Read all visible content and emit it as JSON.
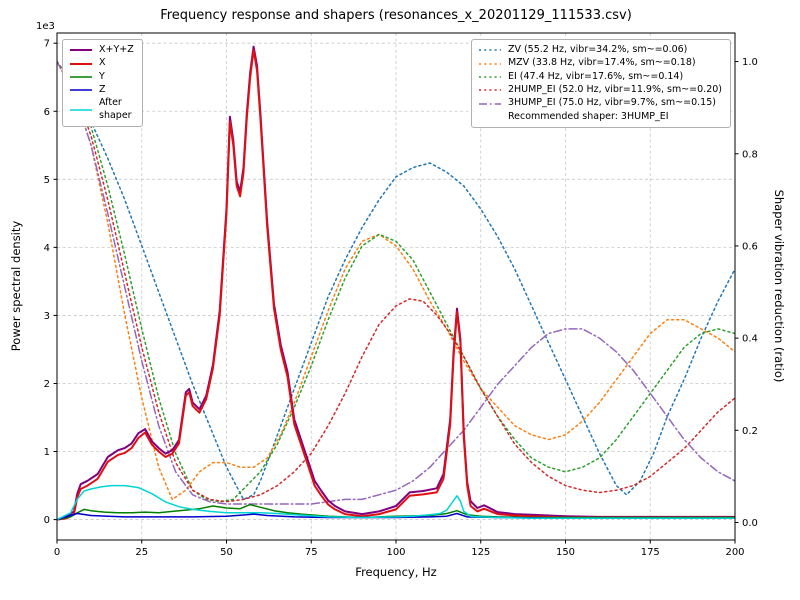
{
  "title": "Frequency response and shapers (resonances_x_20201129_111533.csv)",
  "axes": {
    "x": {
      "label": "Frequency, Hz",
      "min": 0,
      "max": 200,
      "ticks": [
        0,
        25,
        50,
        75,
        100,
        125,
        150,
        175,
        200
      ]
    },
    "y_left": {
      "label": "Power spectral density",
      "offset_text": "1e3",
      "min": -0.3,
      "max": 7.15,
      "ticks": [
        0,
        1,
        2,
        3,
        4,
        5,
        6,
        7
      ]
    },
    "y_right": {
      "label": "Shaper vibration reduction (ratio)",
      "min": -0.038,
      "max": 1.062,
      "ticks": [
        "0.0",
        "0.2",
        "0.4",
        "0.6",
        "0.8",
        "1.0"
      ]
    }
  },
  "legend_psd": {
    "items": [
      {
        "label": "X+Y+Z",
        "color": "#800080",
        "style": "solid",
        "width": 2
      },
      {
        "label": "X",
        "color": "#e01010",
        "style": "solid",
        "width": 2
      },
      {
        "label": "Y",
        "color": "#008000",
        "style": "solid",
        "width": 1.5
      },
      {
        "label": "Z",
        "color": "#0000cc",
        "style": "solid",
        "width": 1.5
      },
      {
        "label": "After\nshaper",
        "color": "#00d5d5",
        "style": "solid",
        "width": 1.5
      }
    ]
  },
  "legend_shapers": {
    "items": [
      {
        "label": "ZV (55.2 Hz, vibr=34.2%, sm~=0.06)",
        "color": "#1f77b4",
        "style": "dotted",
        "width": 1.5
      },
      {
        "label": "MZV (33.8 Hz, vibr=17.4%, sm~=0.18)",
        "color": "#ff7f0e",
        "style": "dotted",
        "width": 1.5
      },
      {
        "label": "EI (47.4 Hz, vibr=17.6%, sm~=0.14)",
        "color": "#2ca02c",
        "style": "dotted",
        "width": 1.5
      },
      {
        "label": "2HUMP_EI (52.0 Hz, vibr=11.9%, sm~=0.20)",
        "color": "#d62728",
        "style": "dotted",
        "width": 1.5
      },
      {
        "label": "3HUMP_EI (75.0 Hz, vibr=9.7%, sm~=0.15)",
        "color": "#9467bd",
        "style": "dashdot",
        "width": 1.5
      }
    ],
    "note": "Recommended shaper: 3HUMP_EI"
  },
  "chart_data": {
    "type": "line",
    "title": "Frequency response and shapers (resonances_x_20201129_111533.csv)",
    "xlabel": "Frequency, Hz",
    "ylabel_left": "Power spectral density (1e3)",
    "ylabel_right": "Shaper vibration reduction (ratio)",
    "xlim": [
      0,
      200
    ],
    "ylim_left": [
      0,
      7
    ],
    "ylim_right": [
      0,
      1
    ],
    "grid": true,
    "series": [
      {
        "name": "X+Y+Z",
        "axis": "left",
        "color": "#800080",
        "style": "solid",
        "width": 2,
        "x": [
          0,
          3,
          5,
          6,
          7,
          9,
          12,
          15,
          18,
          20,
          22,
          24,
          26,
          28,
          30,
          32,
          34,
          36,
          38,
          39,
          40,
          42,
          44,
          46,
          48,
          50,
          51,
          52,
          53,
          54,
          55,
          56,
          57,
          58,
          59,
          60,
          62,
          64,
          66,
          68,
          70,
          72,
          74,
          76,
          78,
          80,
          82,
          85,
          90,
          95,
          100,
          104,
          108,
          112,
          114,
          116,
          117,
          118,
          119,
          120,
          121,
          122,
          124,
          126,
          128,
          130,
          135,
          140,
          150,
          160,
          180,
          200
        ],
        "y": [
          0,
          0.05,
          0.12,
          0.38,
          0.52,
          0.57,
          0.67,
          0.92,
          1.02,
          1.05,
          1.12,
          1.27,
          1.33,
          1.15,
          1.05,
          0.97,
          1.02,
          1.17,
          1.87,
          1.92,
          1.72,
          1.62,
          1.82,
          2.27,
          3.07,
          4.57,
          5.92,
          5.57,
          4.97,
          4.82,
          5.17,
          5.97,
          6.57,
          6.95,
          6.67,
          5.97,
          4.37,
          3.17,
          2.57,
          2.17,
          1.47,
          1.17,
          0.87,
          0.57,
          0.42,
          0.28,
          0.2,
          0.12,
          0.08,
          0.12,
          0.2,
          0.4,
          0.42,
          0.46,
          0.67,
          1.47,
          2.47,
          3.1,
          2.65,
          1.27,
          0.55,
          0.27,
          0.17,
          0.21,
          0.16,
          0.11,
          0.08,
          0.07,
          0.05,
          0.04,
          0.04,
          0.04
        ]
      },
      {
        "name": "X",
        "axis": "left",
        "color": "#e01010",
        "style": "solid",
        "width": 2,
        "x": [
          0,
          3,
          5,
          6,
          7,
          9,
          12,
          15,
          18,
          20,
          22,
          24,
          26,
          28,
          30,
          32,
          34,
          36,
          38,
          39,
          40,
          42,
          44,
          46,
          48,
          50,
          51,
          52,
          53,
          54,
          55,
          56,
          57,
          58,
          59,
          60,
          62,
          64,
          66,
          68,
          70,
          72,
          74,
          76,
          78,
          80,
          82,
          85,
          90,
          95,
          100,
          104,
          108,
          112,
          114,
          116,
          117,
          118,
          119,
          120,
          121,
          122,
          124,
          126,
          128,
          130,
          135,
          140,
          150,
          160,
          180,
          200
        ],
        "y": [
          0,
          0.02,
          0.08,
          0.33,
          0.45,
          0.5,
          0.6,
          0.85,
          0.95,
          0.98,
          1.05,
          1.2,
          1.28,
          1.1,
          1.0,
          0.92,
          0.97,
          1.12,
          1.82,
          1.87,
          1.67,
          1.57,
          1.77,
          2.22,
          3.0,
          4.5,
          5.85,
          5.5,
          4.9,
          4.75,
          5.1,
          5.9,
          6.5,
          6.9,
          6.6,
          5.9,
          4.3,
          3.1,
          2.5,
          2.1,
          1.4,
          1.1,
          0.8,
          0.5,
          0.35,
          0.22,
          0.15,
          0.08,
          0.05,
          0.08,
          0.15,
          0.35,
          0.37,
          0.4,
          0.6,
          1.4,
          2.4,
          3.05,
          2.6,
          1.2,
          0.5,
          0.2,
          0.12,
          0.16,
          0.12,
          0.08,
          0.06,
          0.05,
          0.03,
          0.03,
          0.03,
          0.03
        ]
      },
      {
        "name": "Y",
        "axis": "left",
        "color": "#008000",
        "style": "solid",
        "width": 1.5,
        "x": [
          0,
          4,
          6,
          8,
          10,
          14,
          18,
          22,
          26,
          30,
          34,
          38,
          42,
          46,
          50,
          54,
          57,
          60,
          64,
          68,
          72,
          80,
          90,
          100,
          110,
          115,
          118,
          121,
          125,
          130,
          140,
          160,
          200
        ],
        "y": [
          0,
          0.04,
          0.1,
          0.15,
          0.13,
          0.11,
          0.1,
          0.1,
          0.11,
          0.1,
          0.12,
          0.14,
          0.16,
          0.2,
          0.17,
          0.16,
          0.22,
          0.18,
          0.13,
          0.1,
          0.08,
          0.05,
          0.03,
          0.05,
          0.06,
          0.09,
          0.13,
          0.07,
          0.05,
          0.04,
          0.03,
          0.03,
          0.03
        ]
      },
      {
        "name": "Z",
        "axis": "left",
        "color": "#0000cc",
        "style": "solid",
        "width": 1.5,
        "x": [
          0,
          4,
          6,
          10,
          15,
          20,
          30,
          40,
          50,
          56,
          58,
          62,
          70,
          80,
          90,
          100,
          110,
          115,
          118,
          121,
          130,
          150,
          200
        ],
        "y": [
          0,
          0.06,
          0.09,
          0.06,
          0.05,
          0.04,
          0.04,
          0.04,
          0.05,
          0.07,
          0.08,
          0.06,
          0.04,
          0.03,
          0.03,
          0.03,
          0.04,
          0.05,
          0.09,
          0.04,
          0.03,
          0.02,
          0.02
        ]
      },
      {
        "name": "After shaper",
        "axis": "left",
        "color": "#00d5d5",
        "style": "solid",
        "width": 1.5,
        "x": [
          0,
          4,
          6,
          8,
          10,
          13,
          16,
          20,
          24,
          28,
          32,
          36,
          40,
          45,
          50,
          55,
          60,
          65,
          70,
          80,
          90,
          100,
          105,
          110,
          113,
          115,
          117,
          118,
          119,
          120,
          122,
          125,
          130,
          140,
          160,
          200
        ],
        "y": [
          0,
          0.1,
          0.3,
          0.42,
          0.45,
          0.48,
          0.5,
          0.5,
          0.47,
          0.38,
          0.26,
          0.19,
          0.15,
          0.12,
          0.1,
          0.1,
          0.1,
          0.09,
          0.07,
          0.04,
          0.03,
          0.04,
          0.05,
          0.07,
          0.09,
          0.14,
          0.28,
          0.35,
          0.27,
          0.12,
          0.05,
          0.04,
          0.03,
          0.02,
          0.02,
          0.02
        ]
      },
      {
        "name": "ZV",
        "axis": "right",
        "color": "#1f77b4",
        "style": "dotted",
        "width": 1.5,
        "x": [
          0,
          5,
          10,
          15,
          20,
          25,
          30,
          35,
          40,
          45,
          50,
          55,
          58,
          60,
          65,
          70,
          75,
          80,
          85,
          90,
          95,
          100,
          105,
          110,
          115,
          120,
          125,
          130,
          135,
          140,
          145,
          150,
          155,
          160,
          165,
          168,
          172,
          176,
          180,
          185,
          190,
          195,
          200
        ],
        "y": [
          1.0,
          0.94,
          0.87,
          0.79,
          0.7,
          0.6,
          0.5,
          0.4,
          0.3,
          0.21,
          0.12,
          0.05,
          0.06,
          0.09,
          0.19,
          0.29,
          0.39,
          0.49,
          0.57,
          0.64,
          0.7,
          0.75,
          0.77,
          0.78,
          0.76,
          0.73,
          0.68,
          0.62,
          0.55,
          0.47,
          0.39,
          0.31,
          0.23,
          0.15,
          0.08,
          0.06,
          0.09,
          0.15,
          0.23,
          0.31,
          0.4,
          0.48,
          0.55
        ]
      },
      {
        "name": "MZV",
        "axis": "right",
        "color": "#ff7f0e",
        "style": "dotted",
        "width": 1.5,
        "x": [
          0,
          5,
          10,
          15,
          20,
          25,
          30,
          34,
          38,
          42,
          46,
          50,
          54,
          58,
          62,
          66,
          70,
          75,
          80,
          85,
          90,
          95,
          100,
          105,
          110,
          115,
          120,
          125,
          130,
          135,
          140,
          145,
          150,
          155,
          160,
          165,
          170,
          175,
          180,
          185,
          190,
          195,
          200
        ],
        "y": [
          1.0,
          0.93,
          0.82,
          0.65,
          0.45,
          0.27,
          0.12,
          0.05,
          0.07,
          0.11,
          0.13,
          0.13,
          0.12,
          0.12,
          0.14,
          0.19,
          0.26,
          0.36,
          0.46,
          0.55,
          0.61,
          0.625,
          0.6,
          0.55,
          0.48,
          0.42,
          0.35,
          0.29,
          0.25,
          0.21,
          0.19,
          0.18,
          0.19,
          0.22,
          0.26,
          0.31,
          0.36,
          0.41,
          0.44,
          0.44,
          0.42,
          0.4,
          0.37
        ]
      },
      {
        "name": "EI",
        "axis": "right",
        "color": "#2ca02c",
        "style": "dotted",
        "width": 1.5,
        "x": [
          0,
          5,
          10,
          15,
          20,
          25,
          30,
          35,
          40,
          44,
          48,
          52,
          56,
          60,
          65,
          70,
          75,
          80,
          85,
          90,
          95,
          100,
          105,
          110,
          115,
          120,
          125,
          130,
          135,
          140,
          145,
          150,
          155,
          160,
          165,
          170,
          175,
          180,
          185,
          190,
          195,
          200
        ],
        "y": [
          1.0,
          0.95,
          0.86,
          0.73,
          0.58,
          0.42,
          0.27,
          0.15,
          0.07,
          0.05,
          0.045,
          0.05,
          0.08,
          0.11,
          0.17,
          0.25,
          0.34,
          0.44,
          0.53,
          0.6,
          0.625,
          0.61,
          0.57,
          0.5,
          0.43,
          0.36,
          0.29,
          0.23,
          0.18,
          0.14,
          0.12,
          0.11,
          0.12,
          0.14,
          0.18,
          0.23,
          0.28,
          0.33,
          0.38,
          0.41,
          0.42,
          0.41
        ]
      },
      {
        "name": "2HUMP_EI",
        "axis": "right",
        "color": "#d62728",
        "style": "dotted",
        "width": 1.5,
        "x": [
          0,
          5,
          10,
          15,
          20,
          25,
          30,
          35,
          40,
          45,
          50,
          55,
          60,
          65,
          70,
          75,
          80,
          85,
          90,
          95,
          100,
          104,
          108,
          112,
          116,
          120,
          125,
          130,
          135,
          140,
          145,
          150,
          155,
          160,
          165,
          170,
          175,
          180,
          185,
          190,
          195,
          200
        ],
        "y": [
          1.0,
          0.94,
          0.84,
          0.7,
          0.54,
          0.38,
          0.24,
          0.13,
          0.07,
          0.05,
          0.045,
          0.05,
          0.06,
          0.08,
          0.11,
          0.15,
          0.21,
          0.28,
          0.36,
          0.43,
          0.47,
          0.485,
          0.48,
          0.45,
          0.41,
          0.36,
          0.29,
          0.23,
          0.17,
          0.13,
          0.1,
          0.08,
          0.07,
          0.065,
          0.07,
          0.08,
          0.1,
          0.13,
          0.16,
          0.2,
          0.24,
          0.27
        ]
      },
      {
        "name": "3HUMP_EI",
        "axis": "right",
        "color": "#9467bd",
        "style": "dashdot",
        "width": 1.5,
        "x": [
          0,
          5,
          10,
          15,
          20,
          25,
          30,
          35,
          40,
          45,
          50,
          55,
          60,
          65,
          70,
          75,
          80,
          85,
          90,
          95,
          100,
          105,
          110,
          115,
          120,
          125,
          130,
          135,
          140,
          145,
          150,
          155,
          160,
          165,
          170,
          175,
          180,
          185,
          190,
          195,
          200
        ],
        "y": [
          1.0,
          0.93,
          0.82,
          0.67,
          0.51,
          0.35,
          0.21,
          0.11,
          0.06,
          0.045,
          0.04,
          0.04,
          0.04,
          0.04,
          0.04,
          0.04,
          0.045,
          0.05,
          0.05,
          0.06,
          0.07,
          0.09,
          0.12,
          0.16,
          0.2,
          0.25,
          0.3,
          0.34,
          0.38,
          0.41,
          0.42,
          0.42,
          0.4,
          0.37,
          0.33,
          0.28,
          0.23,
          0.18,
          0.14,
          0.11,
          0.09
        ]
      }
    ],
    "annotations": [
      "Recommended shaper: 3HUMP_EI"
    ]
  }
}
